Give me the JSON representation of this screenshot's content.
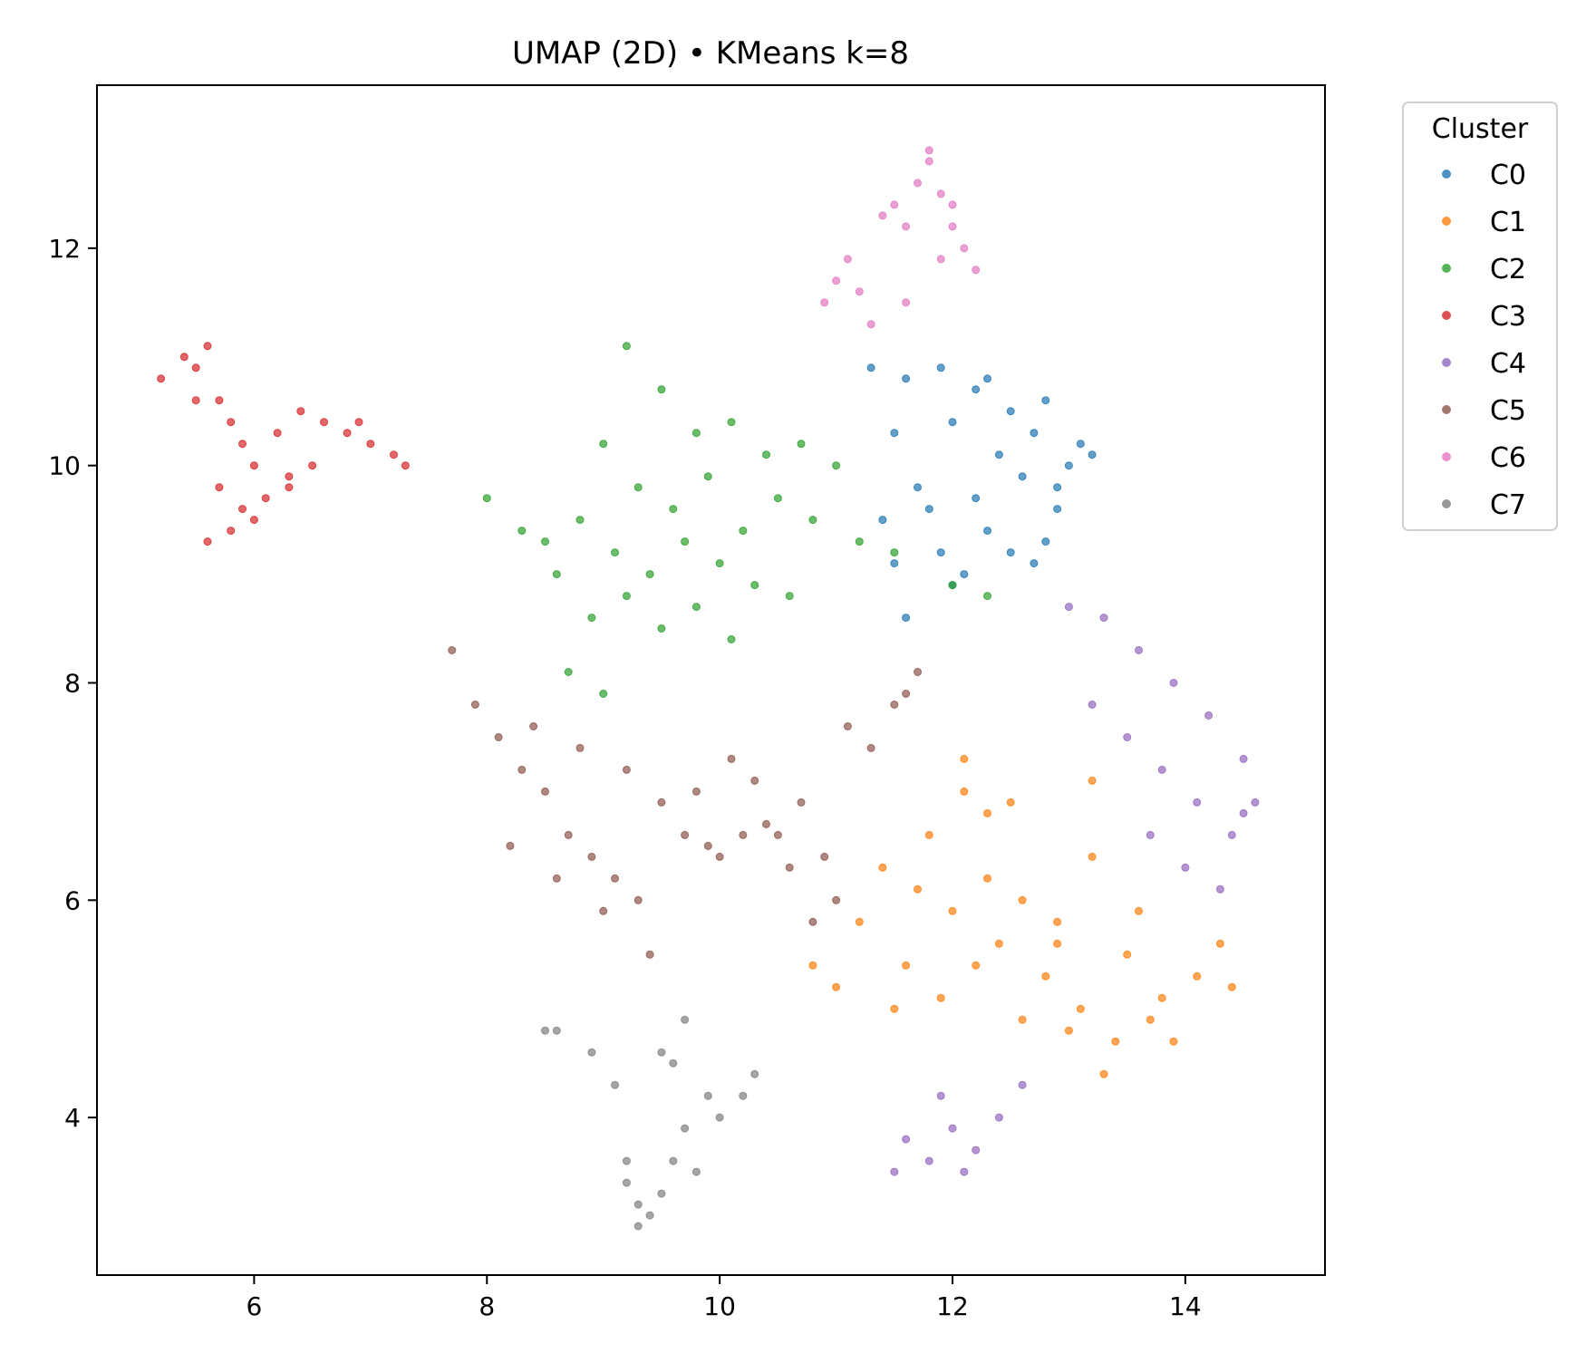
{
  "chart_data": {
    "type": "scatter",
    "title": "UMAP (2D) • KMeans k=8",
    "xlabel": "",
    "ylabel": "",
    "xlim": [
      4.65,
      15.2
    ],
    "ylim": [
      2.55,
      13.5
    ],
    "xticks": [
      6,
      8,
      10,
      12,
      14
    ],
    "yticks": [
      4,
      6,
      8,
      10,
      12
    ],
    "grid": false,
    "legend": {
      "title": "Cluster",
      "placement": "outside-top-right"
    },
    "series": [
      {
        "name": "C0",
        "color": "#1f77b4",
        "x": [
          11.3,
          11.6,
          11.9,
          12.2,
          12.5,
          12.8,
          13.1,
          11.5,
          12.0,
          12.4,
          12.7,
          13.0,
          11.7,
          12.2,
          12.6,
          12.9,
          11.4,
          11.9,
          12.3,
          12.8,
          13.2,
          11.5,
          11.8,
          12.1,
          12.5,
          12.9,
          12.3,
          11.6,
          12.0,
          12.7
        ],
        "y": [
          10.9,
          10.8,
          10.9,
          10.7,
          10.5,
          10.6,
          10.2,
          10.3,
          10.4,
          10.1,
          10.3,
          10.0,
          9.8,
          9.7,
          9.9,
          9.6,
          9.5,
          9.2,
          9.4,
          9.3,
          10.1,
          9.1,
          9.6,
          9.0,
          9.2,
          9.8,
          10.8,
          8.6,
          8.9,
          9.1
        ]
      },
      {
        "name": "C1",
        "color": "#ff7f0e",
        "x": [
          11.4,
          11.8,
          12.1,
          12.3,
          12.6,
          12.9,
          13.2,
          13.5,
          13.8,
          14.1,
          14.4,
          11.2,
          11.6,
          12.0,
          12.4,
          12.8,
          13.1,
          13.4,
          13.7,
          11.0,
          11.5,
          11.9,
          12.2,
          12.6,
          13.0,
          13.3,
          13.9,
          14.3,
          12.1,
          12.3,
          13.2,
          11.7,
          12.5,
          13.6,
          10.8,
          12.9
        ],
        "y": [
          6.3,
          6.6,
          7.0,
          6.8,
          6.0,
          5.8,
          7.1,
          5.5,
          5.1,
          5.3,
          5.2,
          5.8,
          5.4,
          5.9,
          5.6,
          5.3,
          5.0,
          4.7,
          4.9,
          5.2,
          5.0,
          5.1,
          5.4,
          4.9,
          4.8,
          4.4,
          4.7,
          5.6,
          7.3,
          6.2,
          6.4,
          6.1,
          6.9,
          5.9,
          5.4,
          5.6
        ]
      },
      {
        "name": "C2",
        "color": "#2ca02c",
        "x": [
          9.2,
          9.5,
          9.8,
          10.1,
          10.4,
          10.7,
          11.0,
          9.0,
          9.3,
          9.6,
          9.9,
          10.2,
          10.5,
          10.8,
          11.2,
          8.5,
          8.8,
          9.1,
          9.4,
          9.7,
          10.0,
          10.3,
          10.6,
          8.0,
          8.3,
          8.6,
          8.9,
          9.2,
          9.5,
          9.8,
          10.1,
          11.5,
          12.0,
          12.3,
          8.7,
          9.0
        ],
        "y": [
          11.1,
          10.7,
          10.3,
          10.4,
          10.1,
          10.2,
          10.0,
          10.2,
          9.8,
          9.6,
          9.9,
          9.4,
          9.7,
          9.5,
          9.3,
          9.3,
          9.5,
          9.2,
          9.0,
          9.3,
          9.1,
          8.9,
          8.8,
          9.7,
          9.4,
          9.0,
          8.6,
          8.8,
          8.5,
          8.7,
          8.4,
          9.2,
          8.9,
          8.8,
          8.1,
          7.9
        ]
      },
      {
        "name": "C3",
        "color": "#d62728",
        "x": [
          5.2,
          5.4,
          5.5,
          5.6,
          5.7,
          5.8,
          5.9,
          6.0,
          6.2,
          6.4,
          6.6,
          6.8,
          7.0,
          7.2,
          5.5,
          5.7,
          5.9,
          6.1,
          6.3,
          6.5,
          6.9,
          7.3,
          5.6,
          5.8,
          6.0,
          6.3
        ],
        "y": [
          10.8,
          11.0,
          10.9,
          11.1,
          10.6,
          10.4,
          10.2,
          10.0,
          10.3,
          10.5,
          10.4,
          10.3,
          10.2,
          10.1,
          10.6,
          9.8,
          9.6,
          9.7,
          9.9,
          10.0,
          10.4,
          10.0,
          9.3,
          9.4,
          9.5,
          9.8
        ]
      },
      {
        "name": "C4",
        "color": "#9467bd",
        "x": [
          13.0,
          13.3,
          13.6,
          13.9,
          14.2,
          14.5,
          14.6,
          13.2,
          13.5,
          13.8,
          14.1,
          14.4,
          13.7,
          14.0,
          14.3,
          14.5,
          11.6,
          11.8,
          12.0,
          12.2,
          12.4,
          11.5,
          11.9,
          12.1,
          12.6
        ],
        "y": [
          8.7,
          8.6,
          8.3,
          8.0,
          7.7,
          7.3,
          6.9,
          7.8,
          7.5,
          7.2,
          6.9,
          6.6,
          6.6,
          6.3,
          6.1,
          6.8,
          3.8,
          3.6,
          3.9,
          3.7,
          4.0,
          3.5,
          4.2,
          3.5,
          4.3
        ]
      },
      {
        "name": "C5",
        "color": "#8c564b",
        "x": [
          7.7,
          7.9,
          8.1,
          8.3,
          8.5,
          8.7,
          8.9,
          9.1,
          9.3,
          9.5,
          9.7,
          9.9,
          10.1,
          10.3,
          10.5,
          10.7,
          10.9,
          11.1,
          11.3,
          11.5,
          11.7,
          8.2,
          8.6,
          9.0,
          9.4,
          9.8,
          10.2,
          10.6,
          11.0,
          8.4,
          8.8,
          9.2,
          10.0,
          10.4,
          10.8,
          11.6
        ],
        "y": [
          8.3,
          7.8,
          7.5,
          7.2,
          7.0,
          6.6,
          6.4,
          6.2,
          6.0,
          6.9,
          6.6,
          6.5,
          7.3,
          7.1,
          6.6,
          6.9,
          6.4,
          7.6,
          7.4,
          7.8,
          8.1,
          6.5,
          6.2,
          5.9,
          5.5,
          7.0,
          6.6,
          6.3,
          6.0,
          7.6,
          7.4,
          7.2,
          6.4,
          6.7,
          5.8,
          7.9
        ]
      },
      {
        "name": "C6",
        "color": "#e377c2",
        "x": [
          11.0,
          11.1,
          11.2,
          11.4,
          11.5,
          11.6,
          11.7,
          11.8,
          11.9,
          12.0,
          12.1,
          12.2,
          11.3,
          11.8,
          11.9,
          11.6,
          12.0,
          10.9
        ],
        "y": [
          11.7,
          11.9,
          11.6,
          12.3,
          12.4,
          12.2,
          12.6,
          12.8,
          12.5,
          12.2,
          12.0,
          11.8,
          11.3,
          12.9,
          11.9,
          11.5,
          12.4,
          11.5
        ]
      },
      {
        "name": "C7",
        "color": "#7f7f7f",
        "x": [
          8.5,
          8.6,
          8.9,
          9.1,
          9.2,
          9.3,
          9.4,
          9.5,
          9.6,
          9.7,
          9.8,
          9.9,
          10.0,
          10.2,
          10.3,
          9.3,
          9.5,
          9.7,
          9.2,
          9.6
        ],
        "y": [
          4.8,
          4.8,
          4.6,
          4.3,
          3.4,
          3.2,
          3.1,
          3.3,
          3.6,
          3.9,
          3.5,
          4.2,
          4.0,
          4.2,
          4.4,
          3.0,
          4.6,
          4.9,
          3.6,
          4.5
        ]
      }
    ]
  }
}
